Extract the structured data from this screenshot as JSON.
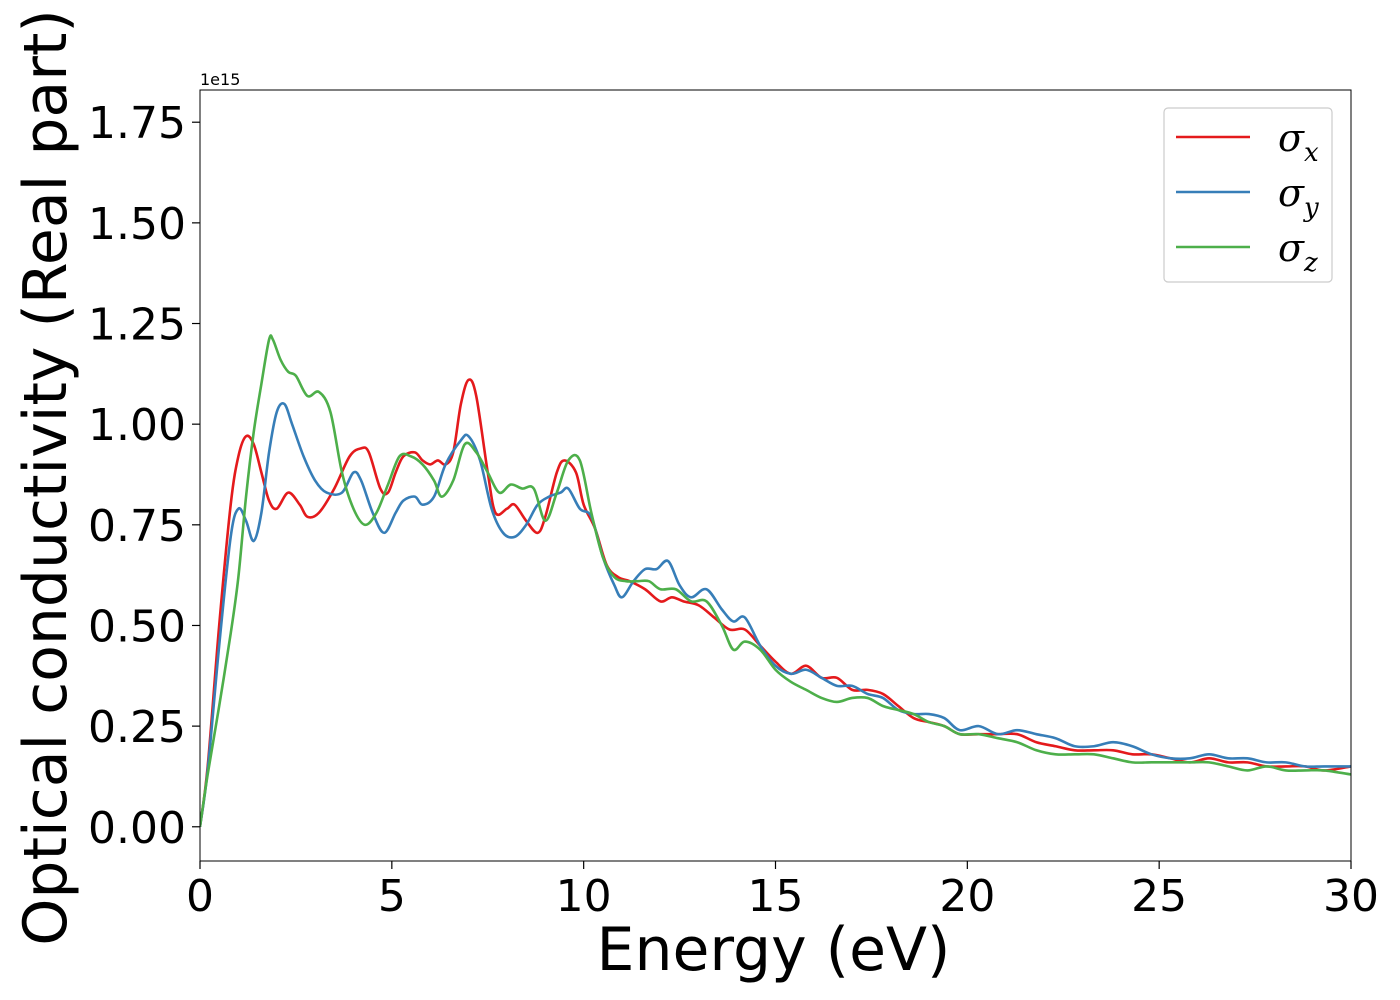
{
  "chart_data": {
    "type": "line",
    "xlabel": "Energy (eV)",
    "ylabel": "Optical conductivity (Real part)",
    "y_offset_label": "1e15",
    "xlim": [
      0,
      30
    ],
    "ylim": [
      -0.085,
      1.83
    ],
    "x_ticks": [
      0,
      5,
      10,
      15,
      20,
      25,
      30
    ],
    "x_tick_labels": [
      "0",
      "5",
      "10",
      "15",
      "20",
      "25",
      "30"
    ],
    "y_ticks": [
      0.0,
      0.25,
      0.5,
      0.75,
      1.0,
      1.25,
      1.5,
      1.75
    ],
    "y_tick_labels": [
      "0.00",
      "0.25",
      "0.50",
      "0.75",
      "1.00",
      "1.25",
      "1.50",
      "1.75"
    ],
    "grid": false,
    "legend_position": "top-right",
    "series": [
      {
        "name": "σx",
        "symbol": "σ",
        "subscript": "x",
        "color": "#e41a1c",
        "points": [
          [
            0,
            0
          ],
          [
            0.2,
            0.15
          ],
          [
            0.5,
            0.5
          ],
          [
            0.8,
            0.8
          ],
          [
            1.0,
            0.92
          ],
          [
            1.2,
            0.97
          ],
          [
            1.4,
            0.95
          ],
          [
            1.6,
            0.88
          ],
          [
            1.8,
            0.81
          ],
          [
            2.0,
            0.79
          ],
          [
            2.3,
            0.83
          ],
          [
            2.6,
            0.8
          ],
          [
            2.8,
            0.77
          ],
          [
            3.1,
            0.78
          ],
          [
            3.5,
            0.84
          ],
          [
            3.9,
            0.92
          ],
          [
            4.2,
            0.94
          ],
          [
            4.4,
            0.93
          ],
          [
            4.7,
            0.84
          ],
          [
            4.9,
            0.83
          ],
          [
            5.1,
            0.88
          ],
          [
            5.3,
            0.92
          ],
          [
            5.6,
            0.93
          ],
          [
            5.8,
            0.91
          ],
          [
            6.0,
            0.9
          ],
          [
            6.2,
            0.91
          ],
          [
            6.4,
            0.9
          ],
          [
            6.6,
            0.93
          ],
          [
            6.8,
            1.05
          ],
          [
            7.0,
            1.11
          ],
          [
            7.2,
            1.07
          ],
          [
            7.5,
            0.88
          ],
          [
            7.7,
            0.78
          ],
          [
            8.0,
            0.79
          ],
          [
            8.2,
            0.8
          ],
          [
            8.5,
            0.76
          ],
          [
            8.8,
            0.73
          ],
          [
            9.0,
            0.77
          ],
          [
            9.3,
            0.88
          ],
          [
            9.5,
            0.91
          ],
          [
            9.8,
            0.88
          ],
          [
            10.0,
            0.8
          ],
          [
            10.3,
            0.74
          ],
          [
            10.6,
            0.65
          ],
          [
            10.9,
            0.62
          ],
          [
            11.2,
            0.61
          ],
          [
            11.6,
            0.59
          ],
          [
            12.0,
            0.56
          ],
          [
            12.3,
            0.57
          ],
          [
            12.6,
            0.56
          ],
          [
            13.0,
            0.55
          ],
          [
            13.4,
            0.52
          ],
          [
            13.8,
            0.49
          ],
          [
            14.2,
            0.49
          ],
          [
            14.6,
            0.45
          ],
          [
            15.0,
            0.41
          ],
          [
            15.4,
            0.38
          ],
          [
            15.8,
            0.4
          ],
          [
            16.2,
            0.37
          ],
          [
            16.6,
            0.37
          ],
          [
            17.0,
            0.34
          ],
          [
            17.4,
            0.34
          ],
          [
            17.8,
            0.33
          ],
          [
            18.2,
            0.3
          ],
          [
            18.6,
            0.27
          ],
          [
            19.0,
            0.26
          ],
          [
            19.4,
            0.25
          ],
          [
            19.8,
            0.23
          ],
          [
            20.3,
            0.23
          ],
          [
            20.8,
            0.23
          ],
          [
            21.3,
            0.23
          ],
          [
            21.8,
            0.21
          ],
          [
            22.3,
            0.2
          ],
          [
            22.8,
            0.19
          ],
          [
            23.3,
            0.19
          ],
          [
            23.8,
            0.19
          ],
          [
            24.3,
            0.18
          ],
          [
            24.8,
            0.18
          ],
          [
            25.3,
            0.17
          ],
          [
            25.8,
            0.16
          ],
          [
            26.3,
            0.17
          ],
          [
            26.8,
            0.16
          ],
          [
            27.3,
            0.16
          ],
          [
            27.8,
            0.15
          ],
          [
            28.3,
            0.15
          ],
          [
            28.8,
            0.15
          ],
          [
            29.3,
            0.14
          ],
          [
            30.0,
            0.15
          ]
        ]
      },
      {
        "name": "σy",
        "symbol": "σ",
        "subscript": "y",
        "color": "#377eb8",
        "points": [
          [
            0,
            0
          ],
          [
            0.2,
            0.14
          ],
          [
            0.5,
            0.45
          ],
          [
            0.8,
            0.72
          ],
          [
            1.0,
            0.79
          ],
          [
            1.2,
            0.76
          ],
          [
            1.4,
            0.71
          ],
          [
            1.6,
            0.78
          ],
          [
            1.8,
            0.93
          ],
          [
            2.0,
            1.03
          ],
          [
            2.2,
            1.05
          ],
          [
            2.4,
            1.0
          ],
          [
            2.7,
            0.92
          ],
          [
            3.0,
            0.86
          ],
          [
            3.3,
            0.83
          ],
          [
            3.7,
            0.83
          ],
          [
            4.0,
            0.88
          ],
          [
            4.2,
            0.86
          ],
          [
            4.5,
            0.78
          ],
          [
            4.8,
            0.73
          ],
          [
            5.1,
            0.78
          ],
          [
            5.3,
            0.81
          ],
          [
            5.6,
            0.82
          ],
          [
            5.8,
            0.8
          ],
          [
            6.1,
            0.82
          ],
          [
            6.4,
            0.9
          ],
          [
            6.8,
            0.96
          ],
          [
            7.0,
            0.97
          ],
          [
            7.3,
            0.91
          ],
          [
            7.6,
            0.79
          ],
          [
            7.9,
            0.73
          ],
          [
            8.2,
            0.72
          ],
          [
            8.5,
            0.75
          ],
          [
            8.8,
            0.8
          ],
          [
            9.1,
            0.82
          ],
          [
            9.4,
            0.83
          ],
          [
            9.6,
            0.84
          ],
          [
            9.9,
            0.79
          ],
          [
            10.2,
            0.77
          ],
          [
            10.5,
            0.67
          ],
          [
            10.8,
            0.6
          ],
          [
            11.0,
            0.57
          ],
          [
            11.3,
            0.61
          ],
          [
            11.6,
            0.64
          ],
          [
            11.9,
            0.64
          ],
          [
            12.2,
            0.66
          ],
          [
            12.5,
            0.6
          ],
          [
            12.8,
            0.57
          ],
          [
            13.2,
            0.59
          ],
          [
            13.6,
            0.54
          ],
          [
            13.9,
            0.51
          ],
          [
            14.2,
            0.52
          ],
          [
            14.6,
            0.45
          ],
          [
            15.0,
            0.4
          ],
          [
            15.4,
            0.38
          ],
          [
            15.8,
            0.39
          ],
          [
            16.2,
            0.37
          ],
          [
            16.6,
            0.35
          ],
          [
            17.0,
            0.35
          ],
          [
            17.4,
            0.33
          ],
          [
            17.8,
            0.32
          ],
          [
            18.2,
            0.29
          ],
          [
            18.6,
            0.28
          ],
          [
            19.0,
            0.28
          ],
          [
            19.4,
            0.27
          ],
          [
            19.8,
            0.24
          ],
          [
            20.3,
            0.25
          ],
          [
            20.8,
            0.23
          ],
          [
            21.3,
            0.24
          ],
          [
            21.8,
            0.23
          ],
          [
            22.3,
            0.22
          ],
          [
            22.8,
            0.2
          ],
          [
            23.3,
            0.2
          ],
          [
            23.8,
            0.21
          ],
          [
            24.3,
            0.2
          ],
          [
            24.8,
            0.18
          ],
          [
            25.3,
            0.17
          ],
          [
            25.8,
            0.17
          ],
          [
            26.3,
            0.18
          ],
          [
            26.8,
            0.17
          ],
          [
            27.3,
            0.17
          ],
          [
            27.8,
            0.16
          ],
          [
            28.3,
            0.16
          ],
          [
            28.8,
            0.15
          ],
          [
            29.3,
            0.15
          ],
          [
            30.0,
            0.15
          ]
        ]
      },
      {
        "name": "σz",
        "symbol": "σ",
        "subscript": "z",
        "color": "#4daf4a",
        "points": [
          [
            0,
            0
          ],
          [
            0.2,
            0.13
          ],
          [
            0.5,
            0.3
          ],
          [
            0.8,
            0.48
          ],
          [
            1.0,
            0.62
          ],
          [
            1.2,
            0.82
          ],
          [
            1.4,
            0.98
          ],
          [
            1.6,
            1.1
          ],
          [
            1.8,
            1.21
          ],
          [
            1.9,
            1.21
          ],
          [
            2.1,
            1.16
          ],
          [
            2.3,
            1.13
          ],
          [
            2.5,
            1.12
          ],
          [
            2.8,
            1.07
          ],
          [
            3.1,
            1.08
          ],
          [
            3.4,
            1.03
          ],
          [
            3.7,
            0.88
          ],
          [
            4.0,
            0.79
          ],
          [
            4.3,
            0.75
          ],
          [
            4.6,
            0.78
          ],
          [
            4.9,
            0.85
          ],
          [
            5.2,
            0.92
          ],
          [
            5.5,
            0.92
          ],
          [
            5.8,
            0.9
          ],
          [
            6.1,
            0.86
          ],
          [
            6.3,
            0.82
          ],
          [
            6.6,
            0.86
          ],
          [
            6.9,
            0.95
          ],
          [
            7.2,
            0.93
          ],
          [
            7.5,
            0.88
          ],
          [
            7.8,
            0.83
          ],
          [
            8.1,
            0.85
          ],
          [
            8.4,
            0.84
          ],
          [
            8.7,
            0.84
          ],
          [
            9.0,
            0.76
          ],
          [
            9.3,
            0.83
          ],
          [
            9.6,
            0.91
          ],
          [
            9.9,
            0.91
          ],
          [
            10.2,
            0.78
          ],
          [
            10.5,
            0.67
          ],
          [
            10.8,
            0.62
          ],
          [
            11.1,
            0.61
          ],
          [
            11.4,
            0.61
          ],
          [
            11.7,
            0.61
          ],
          [
            12.0,
            0.59
          ],
          [
            12.4,
            0.59
          ],
          [
            12.8,
            0.56
          ],
          [
            13.2,
            0.56
          ],
          [
            13.6,
            0.5
          ],
          [
            13.9,
            0.44
          ],
          [
            14.2,
            0.46
          ],
          [
            14.6,
            0.44
          ],
          [
            15.0,
            0.39
          ],
          [
            15.4,
            0.36
          ],
          [
            15.8,
            0.34
          ],
          [
            16.2,
            0.32
          ],
          [
            16.6,
            0.31
          ],
          [
            17.0,
            0.32
          ],
          [
            17.4,
            0.32
          ],
          [
            17.8,
            0.3
          ],
          [
            18.2,
            0.29
          ],
          [
            18.6,
            0.28
          ],
          [
            19.0,
            0.26
          ],
          [
            19.4,
            0.25
          ],
          [
            19.8,
            0.23
          ],
          [
            20.3,
            0.23
          ],
          [
            20.8,
            0.22
          ],
          [
            21.3,
            0.21
          ],
          [
            21.8,
            0.19
          ],
          [
            22.3,
            0.18
          ],
          [
            22.8,
            0.18
          ],
          [
            23.3,
            0.18
          ],
          [
            23.8,
            0.17
          ],
          [
            24.3,
            0.16
          ],
          [
            24.8,
            0.16
          ],
          [
            25.3,
            0.16
          ],
          [
            25.8,
            0.16
          ],
          [
            26.3,
            0.16
          ],
          [
            26.8,
            0.15
          ],
          [
            27.3,
            0.14
          ],
          [
            27.8,
            0.15
          ],
          [
            28.3,
            0.14
          ],
          [
            28.8,
            0.14
          ],
          [
            29.3,
            0.14
          ],
          [
            30.0,
            0.13
          ]
        ]
      }
    ]
  }
}
